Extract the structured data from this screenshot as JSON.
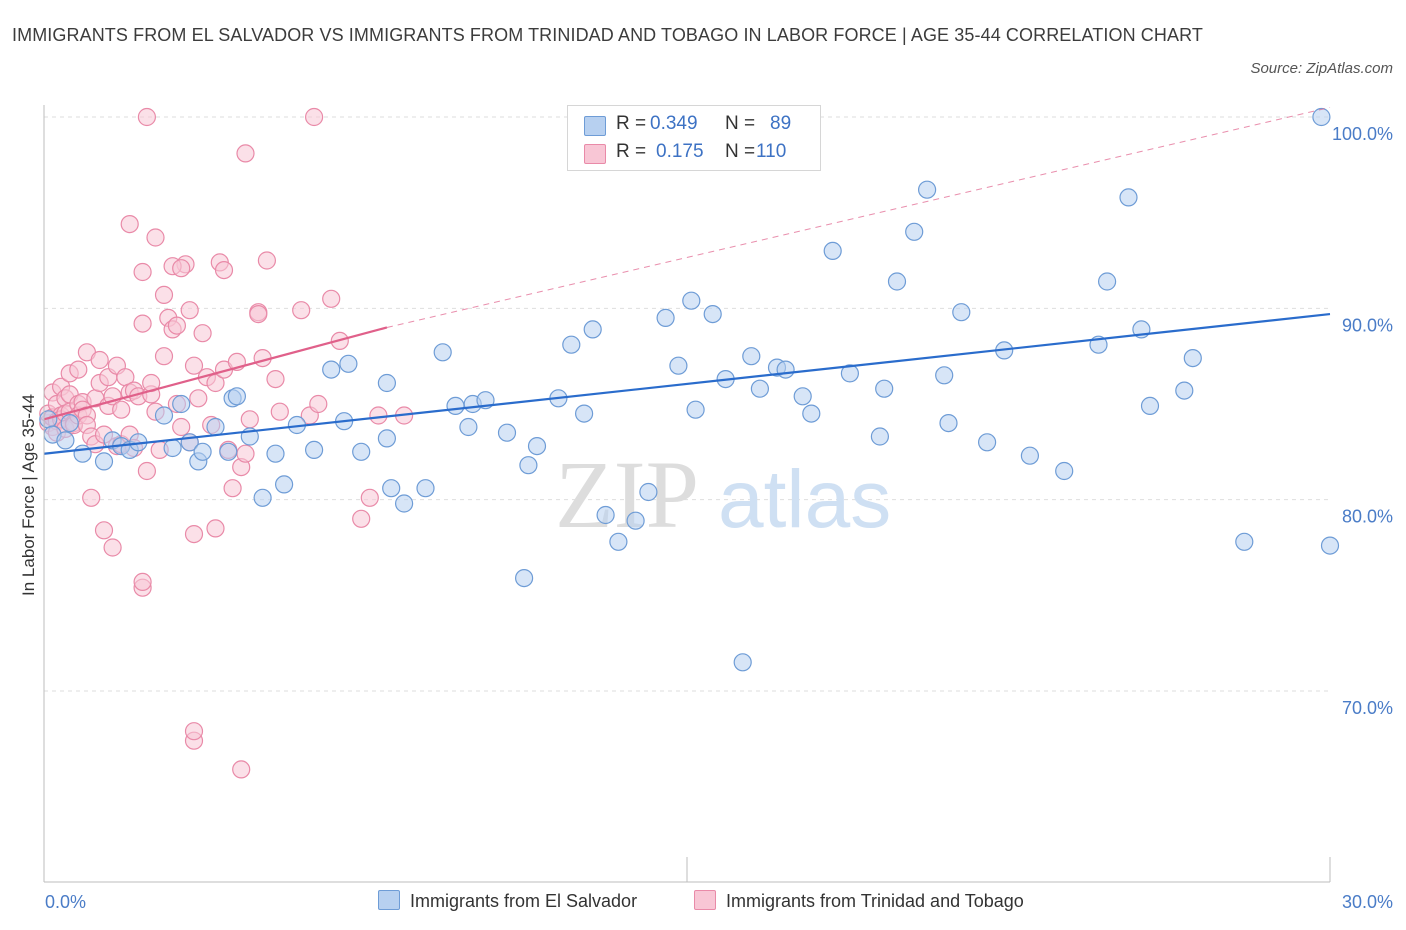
{
  "title": "IMMIGRANTS FROM EL SALVADOR VS IMMIGRANTS FROM TRINIDAD AND TOBAGO IN LABOR FORCE | AGE 35-44 CORRELATION CHART",
  "source": "Source: ZipAtlas.com",
  "watermark": {
    "zip": "ZIP",
    "atlas": "atlas"
  },
  "legend": {
    "rows": [
      {
        "r_label": "R =",
        "r_value": "0.349",
        "n_label": "N =",
        "n_value": "89"
      },
      {
        "r_label": "R =",
        "r_value": "0.175",
        "n_label": "N =",
        "n_value": "110"
      }
    ]
  },
  "colors": {
    "blue_fill": "#b7d0f0",
    "blue_stroke": "#6e9cd6",
    "blue_line": "#2a6ccc",
    "pink_fill": "#f8c6d5",
    "pink_stroke": "#e98aa8",
    "pink_line": "#e0608a",
    "grid": "#dedede",
    "axis_text": "#4a7cc7"
  },
  "chart_data": {
    "type": "scatter",
    "title": "IMMIGRANTS FROM EL SALVADOR VS IMMIGRANTS FROM TRINIDAD AND TOBAGO IN LABOR FORCE | AGE 35-44 CORRELATION CHART",
    "xlabel": "",
    "ylabel": "In Labor Force | Age 35-44",
    "xlim": [
      0,
      30
    ],
    "ylim": [
      60,
      101
    ],
    "x_tick_labels": [
      "0.0%",
      "30.0%"
    ],
    "y_ticks": [
      70,
      80,
      90,
      100
    ],
    "y_tick_labels": [
      "70.0%",
      "80.0%",
      "90.0%",
      "100.0%"
    ],
    "grid": true,
    "legend_position": "bottom",
    "series": [
      {
        "name": "Immigrants from El Salvador",
        "R": 0.349,
        "N": 89,
        "trend": {
          "x": [
            0,
            30
          ],
          "y": [
            82.4,
            89.7
          ],
          "style": "solid"
        },
        "points": [
          [
            0.1,
            84.2
          ],
          [
            0.2,
            83.4
          ],
          [
            0.5,
            83.1
          ],
          [
            0.6,
            84.0
          ],
          [
            0.9,
            82.4
          ],
          [
            1.4,
            82.0
          ],
          [
            1.6,
            83.1
          ],
          [
            1.8,
            82.8
          ],
          [
            2.0,
            82.6
          ],
          [
            2.2,
            83.0
          ],
          [
            2.8,
            84.4
          ],
          [
            3.0,
            82.7
          ],
          [
            3.2,
            85.0
          ],
          [
            3.4,
            83.0
          ],
          [
            3.6,
            82.0
          ],
          [
            3.7,
            82.5
          ],
          [
            4.0,
            83.8
          ],
          [
            4.3,
            82.5
          ],
          [
            4.4,
            85.3
          ],
          [
            4.5,
            85.4
          ],
          [
            4.8,
            83.3
          ],
          [
            5.1,
            80.1
          ],
          [
            5.4,
            82.4
          ],
          [
            5.6,
            80.8
          ],
          [
            5.9,
            83.9
          ],
          [
            6.3,
            82.6
          ],
          [
            6.7,
            86.8
          ],
          [
            7.0,
            84.1
          ],
          [
            7.1,
            87.1
          ],
          [
            7.4,
            82.5
          ],
          [
            8.0,
            86.1
          ],
          [
            8.0,
            83.2
          ],
          [
            8.1,
            80.6
          ],
          [
            8.4,
            79.8
          ],
          [
            8.9,
            80.6
          ],
          [
            9.3,
            87.7
          ],
          [
            9.6,
            84.9
          ],
          [
            9.9,
            83.8
          ],
          [
            10.0,
            85.0
          ],
          [
            10.3,
            85.2
          ],
          [
            10.8,
            83.5
          ],
          [
            11.2,
            75.9
          ],
          [
            11.3,
            81.8
          ],
          [
            11.5,
            82.8
          ],
          [
            12.0,
            85.3
          ],
          [
            12.3,
            88.1
          ],
          [
            12.6,
            84.5
          ],
          [
            12.8,
            88.9
          ],
          [
            13.1,
            79.2
          ],
          [
            13.4,
            77.8
          ],
          [
            13.8,
            78.9
          ],
          [
            14.1,
            80.4
          ],
          [
            14.5,
            89.5
          ],
          [
            14.8,
            87.0
          ],
          [
            15.1,
            90.4
          ],
          [
            15.2,
            84.7
          ],
          [
            15.6,
            89.7
          ],
          [
            15.9,
            86.3
          ],
          [
            16.3,
            71.5
          ],
          [
            16.5,
            87.5
          ],
          [
            16.7,
            85.8
          ],
          [
            17.1,
            86.9
          ],
          [
            17.3,
            86.8
          ],
          [
            17.7,
            85.4
          ],
          [
            17.9,
            84.5
          ],
          [
            18.4,
            93.0
          ],
          [
            18.8,
            86.6
          ],
          [
            19.5,
            83.3
          ],
          [
            19.6,
            85.8
          ],
          [
            19.9,
            91.4
          ],
          [
            20.3,
            94.0
          ],
          [
            20.6,
            96.2
          ],
          [
            21.0,
            86.5
          ],
          [
            21.1,
            84.0
          ],
          [
            21.4,
            89.8
          ],
          [
            22.0,
            83.0
          ],
          [
            22.4,
            87.8
          ],
          [
            23.0,
            82.3
          ],
          [
            23.8,
            81.5
          ],
          [
            24.6,
            88.1
          ],
          [
            24.8,
            91.4
          ],
          [
            25.3,
            95.8
          ],
          [
            25.6,
            88.9
          ],
          [
            25.8,
            84.9
          ],
          [
            26.6,
            85.7
          ],
          [
            26.8,
            87.4
          ],
          [
            28.0,
            77.8
          ],
          [
            29.8,
            100.0
          ],
          [
            30.0,
            77.6
          ]
        ]
      },
      {
        "name": "Immigrants from Trinidad and Tobago",
        "R": 0.175,
        "N": 110,
        "trend": {
          "x": [
            0,
            8
          ],
          "y": [
            84.2,
            89.0
          ],
          "style": "solid"
        },
        "trend_extension": {
          "x": [
            8,
            30
          ],
          "y": [
            89.0,
            100.5
          ],
          "style": "dashed"
        },
        "points": [
          [
            0.1,
            84.0
          ],
          [
            0.1,
            84.5
          ],
          [
            0.2,
            85.6
          ],
          [
            0.2,
            83.8
          ],
          [
            0.2,
            84.3
          ],
          [
            0.3,
            85.0
          ],
          [
            0.3,
            84.1
          ],
          [
            0.3,
            83.5
          ],
          [
            0.4,
            84.4
          ],
          [
            0.4,
            84.2
          ],
          [
            0.4,
            85.9
          ],
          [
            0.5,
            85.3
          ],
          [
            0.5,
            84.5
          ],
          [
            0.5,
            83.7
          ],
          [
            0.6,
            84.6
          ],
          [
            0.6,
            85.5
          ],
          [
            0.6,
            86.6
          ],
          [
            0.7,
            84.0
          ],
          [
            0.7,
            83.9
          ],
          [
            0.8,
            85.0
          ],
          [
            0.8,
            86.8
          ],
          [
            0.8,
            84.4
          ],
          [
            0.9,
            85.1
          ],
          [
            0.9,
            84.7
          ],
          [
            1.0,
            84.4
          ],
          [
            1.0,
            83.9
          ],
          [
            1.0,
            87.7
          ],
          [
            1.1,
            83.3
          ],
          [
            1.1,
            80.1
          ],
          [
            1.2,
            82.9
          ],
          [
            1.2,
            85.3
          ],
          [
            1.3,
            87.3
          ],
          [
            1.3,
            86.1
          ],
          [
            1.4,
            83.4
          ],
          [
            1.4,
            78.4
          ],
          [
            1.5,
            84.9
          ],
          [
            1.5,
            86.4
          ],
          [
            1.6,
            77.5
          ],
          [
            1.6,
            85.4
          ],
          [
            1.7,
            82.8
          ],
          [
            1.7,
            87.0
          ],
          [
            1.8,
            82.9
          ],
          [
            1.8,
            84.7
          ],
          [
            1.9,
            86.4
          ],
          [
            2.0,
            85.6
          ],
          [
            2.0,
            83.4
          ],
          [
            2.1,
            85.7
          ],
          [
            2.1,
            82.7
          ],
          [
            2.2,
            85.4
          ],
          [
            2.3,
            89.2
          ],
          [
            2.3,
            75.4
          ],
          [
            2.3,
            75.7
          ],
          [
            2.4,
            81.5
          ],
          [
            2.5,
            85.5
          ],
          [
            2.5,
            86.1
          ],
          [
            2.6,
            84.6
          ],
          [
            2.6,
            93.7
          ],
          [
            2.7,
            82.6
          ],
          [
            2.8,
            87.5
          ],
          [
            2.8,
            90.7
          ],
          [
            2.9,
            89.5
          ],
          [
            3.0,
            88.9
          ],
          [
            3.1,
            85.0
          ],
          [
            3.2,
            83.8
          ],
          [
            3.3,
            92.3
          ],
          [
            3.4,
            89.9
          ],
          [
            3.4,
            83.0
          ],
          [
            3.5,
            87.0
          ],
          [
            3.5,
            78.2
          ],
          [
            3.6,
            85.3
          ],
          [
            3.7,
            88.7
          ],
          [
            3.8,
            86.4
          ],
          [
            3.9,
            83.9
          ],
          [
            4.0,
            78.5
          ],
          [
            4.0,
            86.1
          ],
          [
            4.1,
            92.4
          ],
          [
            4.2,
            92.0
          ],
          [
            4.2,
            86.8
          ],
          [
            4.3,
            82.6
          ],
          [
            4.4,
            80.6
          ],
          [
            4.5,
            87.2
          ],
          [
            4.6,
            81.7
          ],
          [
            4.7,
            82.4
          ],
          [
            4.8,
            84.2
          ],
          [
            5.0,
            89.8
          ],
          [
            5.0,
            89.7
          ],
          [
            5.1,
            87.4
          ],
          [
            5.2,
            92.5
          ],
          [
            5.4,
            86.3
          ],
          [
            5.5,
            84.6
          ],
          [
            6.0,
            89.9
          ],
          [
            6.2,
            84.4
          ],
          [
            6.4,
            85.0
          ],
          [
            6.7,
            90.5
          ],
          [
            6.9,
            88.3
          ],
          [
            7.4,
            79.0
          ],
          [
            7.6,
            80.1
          ],
          [
            7.8,
            84.4
          ],
          [
            8.4,
            84.4
          ],
          [
            3.5,
            67.4
          ],
          [
            3.5,
            67.9
          ],
          [
            4.6,
            65.9
          ],
          [
            2.0,
            94.4
          ],
          [
            2.3,
            91.9
          ],
          [
            2.4,
            100.0
          ],
          [
            3.0,
            92.2
          ],
          [
            3.2,
            92.1
          ],
          [
            6.3,
            100.0
          ],
          [
            4.7,
            98.1
          ],
          [
            3.1,
            89.1
          ]
        ]
      }
    ]
  },
  "bottom_legend": [
    {
      "label": "Immigrants from El Salvador"
    },
    {
      "label": "Immigrants from Trinidad and Tobago"
    }
  ]
}
